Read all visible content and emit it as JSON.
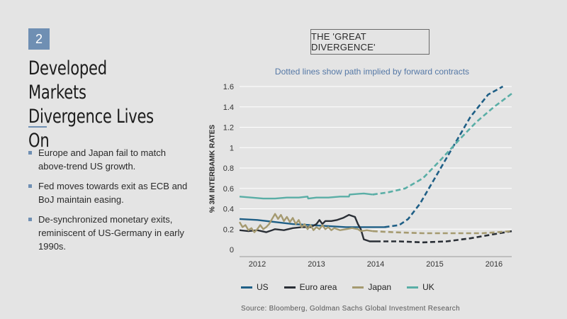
{
  "slide": {
    "number": "2",
    "headline_line1": "Developed Markets",
    "headline_line2": "Divergence Lives On",
    "bullets": [
      "Europe and Japan fail to match above-trend US growth.",
      "Fed moves towards exit as ECB and BoJ maintain easing.",
      "De-synchronized monetary exits, reminiscent of US-Germany in early 1990s."
    ],
    "source": "Source: Bloomberg, Goldman Sachs Global Investment Research"
  },
  "colors": {
    "accent": "#6f8fb3",
    "subtitle": "#5578a6",
    "grid": "#ffffff",
    "axis": "#9a9a9a"
  },
  "chart_data": {
    "type": "line",
    "title": "THE 'GREAT DIVERGENCE'",
    "subtitle": "Dotted lines show path implied by forward contracts",
    "ylabel": "% 3M INTERBAMK RATES",
    "xlabel": "",
    "xlim": [
      2011.7,
      2016.3
    ],
    "ylim": [
      0,
      1.6
    ],
    "yticks": [
      0,
      0.2,
      0.4,
      0.6,
      0.8,
      1,
      1.2,
      1.4,
      1.6
    ],
    "ytick_labels": [
      "0",
      "0.2",
      "0.4",
      "0.6",
      "0.8",
      "1",
      "1.2",
      "1.4",
      "1.6"
    ],
    "xticks": [
      2012,
      2013,
      2014,
      2015,
      2016
    ],
    "xtick_labels": [
      "2012",
      "2013",
      "2014",
      "2015",
      "2016"
    ],
    "grid": "horizontal",
    "legend": "bottom",
    "series": [
      {
        "name": "US",
        "color": "#1f5f86",
        "actual": [
          [
            2011.7,
            0.3
          ],
          [
            2012.0,
            0.29
          ],
          [
            2012.3,
            0.27
          ],
          [
            2012.6,
            0.25
          ],
          [
            2012.9,
            0.24
          ],
          [
            2013.2,
            0.23
          ],
          [
            2013.5,
            0.22
          ],
          [
            2013.8,
            0.22
          ],
          [
            2014.15,
            0.22
          ]
        ],
        "forward": [
          [
            2014.15,
            0.22
          ],
          [
            2014.4,
            0.24
          ],
          [
            2014.55,
            0.3
          ],
          [
            2014.75,
            0.45
          ],
          [
            2015.0,
            0.7
          ],
          [
            2015.3,
            1.0
          ],
          [
            2015.6,
            1.3
          ],
          [
            2015.9,
            1.52
          ],
          [
            2016.15,
            1.6
          ]
        ]
      },
      {
        "name": "Euro area",
        "color": "#2a2f36",
        "actual": [
          [
            2011.7,
            0.19
          ],
          [
            2011.85,
            0.18
          ],
          [
            2012.0,
            0.19
          ],
          [
            2012.15,
            0.17
          ],
          [
            2012.3,
            0.2
          ],
          [
            2012.45,
            0.19
          ],
          [
            2012.6,
            0.21
          ],
          [
            2012.75,
            0.22
          ],
          [
            2012.9,
            0.22
          ],
          [
            2013.0,
            0.25
          ],
          [
            2013.05,
            0.29
          ],
          [
            2013.1,
            0.25
          ],
          [
            2013.15,
            0.28
          ],
          [
            2013.25,
            0.28
          ],
          [
            2013.35,
            0.29
          ],
          [
            2013.45,
            0.31
          ],
          [
            2013.55,
            0.34
          ],
          [
            2013.65,
            0.32
          ],
          [
            2013.7,
            0.25
          ],
          [
            2013.75,
            0.2
          ],
          [
            2013.8,
            0.1
          ],
          [
            2013.9,
            0.08
          ],
          [
            2014.0,
            0.08
          ]
        ],
        "forward": [
          [
            2014.0,
            0.08
          ],
          [
            2014.4,
            0.08
          ],
          [
            2014.8,
            0.07
          ],
          [
            2015.2,
            0.08
          ],
          [
            2015.6,
            0.11
          ],
          [
            2016.0,
            0.15
          ],
          [
            2016.3,
            0.18
          ]
        ]
      },
      {
        "name": "Japan",
        "color": "#a59a70",
        "actual": [
          [
            2011.7,
            0.27
          ],
          [
            2011.75,
            0.22
          ],
          [
            2011.8,
            0.24
          ],
          [
            2011.85,
            0.19
          ],
          [
            2011.9,
            0.21
          ],
          [
            2011.95,
            0.17
          ],
          [
            2012.0,
            0.2
          ],
          [
            2012.05,
            0.24
          ],
          [
            2012.1,
            0.2
          ],
          [
            2012.15,
            0.22
          ],
          [
            2012.2,
            0.25
          ],
          [
            2012.3,
            0.35
          ],
          [
            2012.35,
            0.3
          ],
          [
            2012.4,
            0.34
          ],
          [
            2012.45,
            0.28
          ],
          [
            2012.5,
            0.32
          ],
          [
            2012.55,
            0.27
          ],
          [
            2012.6,
            0.31
          ],
          [
            2012.65,
            0.25
          ],
          [
            2012.7,
            0.29
          ],
          [
            2012.75,
            0.22
          ],
          [
            2012.8,
            0.25
          ],
          [
            2012.85,
            0.2
          ],
          [
            2012.9,
            0.24
          ],
          [
            2012.95,
            0.19
          ],
          [
            2013.0,
            0.22
          ],
          [
            2013.05,
            0.2
          ],
          [
            2013.1,
            0.24
          ],
          [
            2013.15,
            0.2
          ],
          [
            2013.2,
            0.22
          ],
          [
            2013.25,
            0.19
          ],
          [
            2013.3,
            0.21
          ],
          [
            2013.4,
            0.19
          ],
          [
            2013.5,
            0.2
          ],
          [
            2013.6,
            0.21
          ],
          [
            2013.7,
            0.2
          ],
          [
            2013.75,
            0.18
          ],
          [
            2013.85,
            0.19
          ],
          [
            2013.95,
            0.18
          ]
        ],
        "forward": [
          [
            2013.95,
            0.18
          ],
          [
            2014.3,
            0.17
          ],
          [
            2014.8,
            0.16
          ],
          [
            2015.3,
            0.16
          ],
          [
            2015.8,
            0.16
          ],
          [
            2016.3,
            0.18
          ]
        ]
      },
      {
        "name": "UK",
        "color": "#5aaea6",
        "actual": [
          [
            2011.7,
            0.52
          ],
          [
            2011.9,
            0.51
          ],
          [
            2012.1,
            0.5
          ],
          [
            2012.3,
            0.5
          ],
          [
            2012.5,
            0.51
          ],
          [
            2012.7,
            0.51
          ],
          [
            2012.85,
            0.52
          ],
          [
            2012.86,
            0.5
          ],
          [
            2013.0,
            0.51
          ],
          [
            2013.2,
            0.51
          ],
          [
            2013.4,
            0.52
          ],
          [
            2013.55,
            0.52
          ],
          [
            2013.56,
            0.54
          ],
          [
            2013.8,
            0.55
          ],
          [
            2013.95,
            0.54
          ]
        ],
        "forward": [
          [
            2013.95,
            0.54
          ],
          [
            2014.2,
            0.56
          ],
          [
            2014.5,
            0.6
          ],
          [
            2014.8,
            0.7
          ],
          [
            2015.1,
            0.88
          ],
          [
            2015.4,
            1.07
          ],
          [
            2015.7,
            1.25
          ],
          [
            2016.0,
            1.4
          ],
          [
            2016.3,
            1.53
          ]
        ]
      }
    ]
  }
}
